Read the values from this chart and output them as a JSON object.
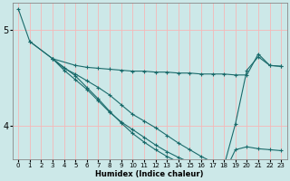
{
  "xlabel": "Humidex (Indice chaleur)",
  "bg_color": "#cce8e8",
  "grid_color": "#f5b8b8",
  "line_color": "#1a6b6b",
  "xlim": [
    -0.5,
    23.5
  ],
  "ylim": [
    3.65,
    5.28
  ],
  "yticks": [
    4,
    5
  ],
  "xticks": [
    0,
    1,
    2,
    3,
    4,
    5,
    6,
    7,
    8,
    9,
    10,
    11,
    12,
    13,
    14,
    15,
    16,
    17,
    18,
    19,
    20,
    21,
    22,
    23
  ],
  "lines": [
    {
      "x": [
        0,
        1,
        3,
        5,
        6,
        7,
        8,
        9,
        10,
        11,
        12,
        13,
        14,
        15,
        16,
        17,
        18,
        19,
        20,
        21,
        22,
        23
      ],
      "y": [
        5.22,
        4.88,
        4.7,
        4.63,
        4.61,
        4.6,
        4.59,
        4.58,
        4.57,
        4.57,
        4.56,
        4.56,
        4.55,
        4.55,
        4.54,
        4.54,
        4.54,
        4.53,
        4.53,
        4.75,
        4.63,
        4.62
      ]
    },
    {
      "x": [
        1,
        3,
        4,
        5,
        6,
        7,
        8,
        9,
        10,
        11,
        12,
        13,
        14,
        15,
        16,
        17,
        18,
        19,
        20,
        21,
        22,
        23
      ],
      "y": [
        4.88,
        4.7,
        4.6,
        4.54,
        4.47,
        4.4,
        4.32,
        4.22,
        4.12,
        4.05,
        3.98,
        3.9,
        3.82,
        3.75,
        3.68,
        3.62,
        3.58,
        4.02,
        4.58,
        4.72,
        4.63,
        4.62
      ]
    },
    {
      "x": [
        3,
        4,
        5,
        6,
        7,
        8,
        9,
        10,
        11,
        12,
        13,
        14,
        15,
        16,
        17,
        18
      ],
      "y": [
        4.7,
        4.58,
        4.48,
        4.38,
        4.26,
        4.14,
        4.04,
        3.96,
        3.88,
        3.8,
        3.73,
        3.67,
        3.62,
        3.58,
        3.56,
        3.55
      ]
    },
    {
      "x": [
        3,
        5,
        6,
        7,
        8,
        9,
        10,
        11,
        12,
        13,
        14,
        15,
        16,
        17,
        18,
        19,
        20,
        21,
        22,
        23
      ],
      "y": [
        4.7,
        4.52,
        4.4,
        4.28,
        4.15,
        4.03,
        3.92,
        3.83,
        3.75,
        3.68,
        3.62,
        3.58,
        3.55,
        3.52,
        3.5,
        3.75,
        3.78,
        3.76,
        3.75,
        3.74
      ]
    }
  ]
}
